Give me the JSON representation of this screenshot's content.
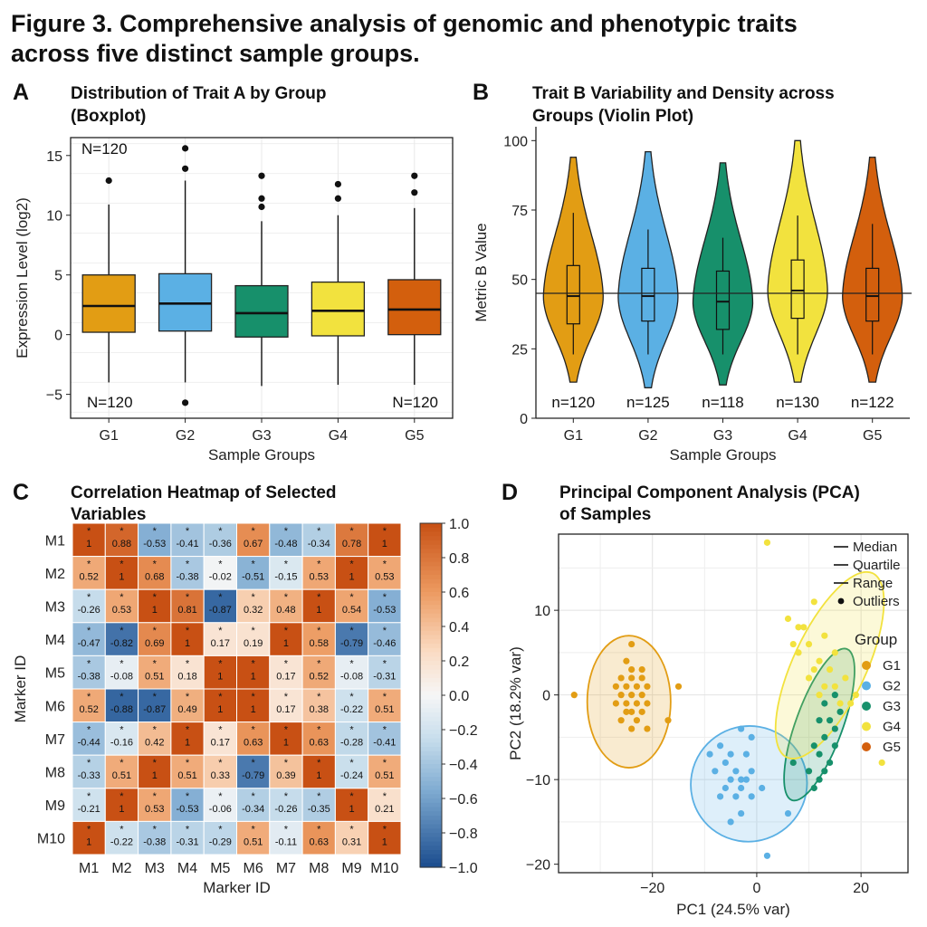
{
  "figure_title_line1": "Figure 3. Comprehensive analysis of genomic and phenotypic traits",
  "figure_title_line2": "across five distinct sample groups.",
  "chart_data": [
    {
      "panel": "A",
      "type": "boxplot",
      "title_line1": "Distribution of Trait A by Group",
      "title_line2": "(Boxplot)",
      "xlabel": "Sample Groups",
      "ylabel": "Expression Level (log2)",
      "ylim": [
        -7,
        16.5
      ],
      "yticks": [
        -5,
        0,
        5,
        10,
        15
      ],
      "ytick_labels": [
        "−5",
        "0",
        "5",
        "10",
        "15"
      ],
      "grid": true,
      "categories": [
        "G1",
        "G2",
        "G3",
        "G4",
        "G5"
      ],
      "colors": [
        "#E29D14",
        "#5BB0E4",
        "#17906B",
        "#F2E23E",
        "#D35F0D"
      ],
      "boxes": [
        {
          "group": "G1",
          "whisker_low": -4.0,
          "q1": 0.2,
          "median": 2.4,
          "q3": 5.0,
          "whisker_high": 10.9,
          "outliers": [
            12.9
          ]
        },
        {
          "group": "G2",
          "whisker_low": -4.0,
          "q1": 0.3,
          "median": 2.6,
          "q3": 5.1,
          "whisker_high": 12.9,
          "outliers": [
            13.9,
            15.6,
            -5.7
          ]
        },
        {
          "group": "G3",
          "whisker_low": -4.3,
          "q1": -0.2,
          "median": 1.8,
          "q3": 4.1,
          "whisker_high": 9.5,
          "outliers": [
            10.7,
            11.4,
            13.3
          ]
        },
        {
          "group": "G4",
          "whisker_low": -4.2,
          "q1": -0.1,
          "median": 2.0,
          "q3": 4.4,
          "whisker_high": 10.0,
          "outliers": [
            11.4,
            12.6
          ]
        },
        {
          "group": "G5",
          "whisker_low": -4.2,
          "q1": 0.0,
          "median": 2.1,
          "q3": 4.6,
          "whisker_high": 10.6,
          "outliers": [
            11.9,
            13.3
          ]
        }
      ],
      "annotations": [
        "N=120",
        "N=120",
        "N=120"
      ]
    },
    {
      "panel": "B",
      "type": "violin",
      "title_line1": "Trait B Variability and Density across",
      "title_line2": "Groups (Violin Plot)",
      "xlabel": "Sample Groups",
      "ylabel": "Metric B Value",
      "ylim": [
        0,
        105
      ],
      "yticks": [
        0,
        25,
        50,
        75,
        100
      ],
      "reference_line": 45,
      "grid": false,
      "categories": [
        "G1",
        "G2",
        "G3",
        "G4",
        "G5"
      ],
      "colors": [
        "#E29D14",
        "#5BB0E4",
        "#17906B",
        "#F2E23E",
        "#D35F0D"
      ],
      "violins": [
        {
          "group": "G1",
          "min": 13,
          "max": 94,
          "q1": 34,
          "median": 44,
          "q3": 55,
          "whisker_low": 23,
          "whisker_high": 74,
          "n_label": "n=120"
        },
        {
          "group": "G2",
          "min": 11,
          "max": 96,
          "q1": 35,
          "median": 44,
          "q3": 54,
          "whisker_low": 23,
          "whisker_high": 68,
          "n_label": "n=125"
        },
        {
          "group": "G3",
          "min": 12,
          "max": 92,
          "q1": 32,
          "median": 42,
          "q3": 53,
          "whisker_low": 23,
          "whisker_high": 65,
          "n_label": "n=118"
        },
        {
          "group": "G4",
          "min": 13,
          "max": 100,
          "q1": 36,
          "median": 46,
          "q3": 57,
          "whisker_low": 23,
          "whisker_high": 73,
          "n_label": "n=130"
        },
        {
          "group": "G5",
          "min": 13,
          "max": 94,
          "q1": 35,
          "median": 44,
          "q3": 54,
          "whisker_low": 23,
          "whisker_high": 70,
          "n_label": "n=122"
        }
      ]
    },
    {
      "panel": "C",
      "type": "heatmap",
      "title_line1": "Correlation Heatmap of Selected",
      "title_line2": "Variables",
      "xlabel": "Marker ID",
      "ylabel": "Marker ID",
      "labels": [
        "M1",
        "M2",
        "M3",
        "M4",
        "M5",
        "M6",
        "M7",
        "M8",
        "M9",
        "M10"
      ],
      "colorbar_ticks": [
        "1.0",
        "0.8",
        "0.6",
        "0.4",
        "0.2",
        "0.0",
        "−0.2",
        "−0.4",
        "−0.6",
        "−0.8",
        "−1.0"
      ],
      "colorbar_range": [
        -1,
        1
      ],
      "values": [
        [
          1,
          0.88,
          -0.53,
          -0.41,
          -0.36,
          0.67,
          -0.48,
          -0.34,
          0.78,
          1
        ],
        [
          0.52,
          1,
          0.68,
          -0.38,
          -0.02,
          -0.51,
          -0.15,
          0.53,
          1,
          0.53
        ],
        [
          -0.26,
          0.53,
          1,
          0.81,
          -0.87,
          0.32,
          0.48,
          1,
          0.54,
          -0.53
        ],
        [
          -0.47,
          -0.82,
          0.69,
          1,
          0.17,
          0.19,
          1,
          0.58,
          -0.79,
          -0.46
        ],
        [
          -0.38,
          -0.08,
          0.51,
          0.18,
          1,
          1,
          0.17,
          0.52,
          -0.08,
          -0.31
        ],
        [
          0.52,
          -0.88,
          -0.87,
          0.49,
          1,
          1,
          0.17,
          0.38,
          -0.22,
          0.51
        ],
        [
          -0.44,
          -0.16,
          0.42,
          1,
          0.17,
          0.63,
          1,
          0.63,
          -0.28,
          -0.41
        ],
        [
          -0.33,
          0.51,
          1,
          0.51,
          0.33,
          -0.79,
          0.39,
          1,
          -0.24,
          0.51
        ],
        [
          -0.21,
          1,
          0.53,
          -0.53,
          -0.06,
          -0.34,
          -0.26,
          -0.35,
          1,
          0.21
        ],
        [
          1,
          -0.22,
          -0.38,
          -0.31,
          -0.29,
          0.51,
          -0.11,
          0.63,
          0.31,
          1
        ]
      ],
      "cell_labels": [
        [
          "1",
          "0.88",
          "-0.53",
          "-0.41",
          "-0.36",
          "0.67",
          "-0.48",
          "-0.34",
          "0.78",
          "1"
        ],
        [
          "0.52",
          "1",
          "0.68",
          "-0.38",
          "-0.02",
          "-0.51",
          "-0.15",
          "0.53",
          "1",
          "0.53"
        ],
        [
          "-0.26",
          "0.53",
          "1",
          "0.81",
          "-0.87",
          "0.32",
          "0.48",
          "1",
          "0.54",
          "-0.53"
        ],
        [
          "-0.47",
          "-0.82",
          "0.69",
          "1",
          "0.17",
          "0.19",
          "1",
          "0.58",
          "-0.79",
          "-0.46"
        ],
        [
          "-0.38",
          "-0.08",
          "0.51",
          "0.18",
          "1",
          "1",
          "0.17",
          "0.52",
          "-0.08",
          "-0.31"
        ],
        [
          "0.52",
          "-0.88",
          "-0.87",
          "0.49",
          "1",
          "1",
          "0.17",
          "0.38",
          "-0.22",
          "0.51"
        ],
        [
          "-0.44",
          "-0.16",
          "0.42",
          "1",
          "0.17",
          "0.63",
          "1",
          "0.63",
          "-0.28",
          "-0.41"
        ],
        [
          "-0.33",
          "0.51",
          "1",
          "0.51",
          "0.33",
          "-0.79",
          "0.39",
          "1",
          "-0.24",
          "0.51"
        ],
        [
          "-0.21",
          "1",
          "0.53",
          "-0.53",
          "-0.06",
          "-0.34",
          "-0.26",
          "-0.35",
          "1",
          "0.21"
        ],
        [
          "1",
          "-0.22",
          "-0.38",
          "-0.31",
          "-0.29",
          "0.51",
          "-0.11",
          "0.63",
          "0.31",
          "1"
        ]
      ],
      "significance_marker": "*"
    },
    {
      "panel": "D",
      "type": "scatter",
      "title_line1": "Principal Component Analysis (PCA)",
      "title_line2": "of Samples",
      "xlabel": "PC1 (24.5% var)",
      "ylabel": "PC2 (18.2% var)",
      "xlim": [
        -38,
        29
      ],
      "ylim": [
        -21,
        19
      ],
      "xticks": [
        -20,
        0,
        20
      ],
      "xtick_labels": [
        "−20",
        "0",
        "20"
      ],
      "yticks": [
        -20,
        -10,
        0,
        10
      ],
      "ytick_labels": [
        "−20",
        "−10",
        "0",
        "10"
      ],
      "grid": true,
      "legend_position": "right",
      "legend_lines": [
        "Median",
        "Quartile",
        "Range",
        "Outliers"
      ],
      "legend_title": "Group",
      "series": [
        {
          "name": "G1",
          "color": "#E29D14",
          "ellipse": {
            "cx": -24.5,
            "cy": -0.8,
            "rx": 8.0,
            "ry": 7.8,
            "angle": 0
          },
          "points": [
            [
              -24,
              6
            ],
            [
              -25,
              4
            ],
            [
              -24,
              3
            ],
            [
              -22,
              3
            ],
            [
              -26,
              2
            ],
            [
              -24,
              2
            ],
            [
              -22,
              2
            ],
            [
              -23,
              1
            ],
            [
              -25,
              1
            ],
            [
              -27,
              1
            ],
            [
              -21,
              1
            ],
            [
              -15,
              1
            ],
            [
              -24,
              0
            ],
            [
              -22,
              0
            ],
            [
              -26,
              0
            ],
            [
              -35,
              0
            ],
            [
              -25,
              -1
            ],
            [
              -23,
              -1
            ],
            [
              -21,
              -1
            ],
            [
              -24,
              -2
            ],
            [
              -22,
              -2
            ],
            [
              -26,
              -3
            ],
            [
              -23,
              -3
            ],
            [
              -24,
              -4
            ],
            [
              -21,
              -4
            ],
            [
              -25,
              -2
            ],
            [
              -27,
              -1
            ],
            [
              -17,
              -3
            ]
          ]
        },
        {
          "name": "G2",
          "color": "#5BB0E4",
          "ellipse": {
            "cx": -1.5,
            "cy": -10.5,
            "rx": 11.2,
            "ry": 6.8,
            "angle": -35
          },
          "points": [
            [
              -3,
              -4
            ],
            [
              -7,
              -6
            ],
            [
              -9,
              -7
            ],
            [
              -1,
              -5
            ],
            [
              -5,
              -7
            ],
            [
              -2,
              -7
            ],
            [
              -6,
              -8
            ],
            [
              -4,
              -9
            ],
            [
              -8,
              -9
            ],
            [
              -1,
              -9
            ],
            [
              -3,
              -10
            ],
            [
              -5,
              -10
            ],
            [
              -2,
              -10
            ],
            [
              -6,
              -11
            ],
            [
              -4,
              -12
            ],
            [
              -1,
              -12
            ],
            [
              -3,
              -11
            ],
            [
              1,
              -11
            ],
            [
              -7,
              -12
            ],
            [
              -3,
              -14
            ],
            [
              6,
              -14
            ],
            [
              -5,
              -15
            ],
            [
              2,
              -19
            ]
          ]
        },
        {
          "name": "G3",
          "color": "#17906B",
          "ellipse": {
            "cx": 12.0,
            "cy": -3.5,
            "rx": 4.5,
            "ry": 9.5,
            "angle": 20
          },
          "points": [
            [
              15,
              0
            ],
            [
              13,
              -1
            ],
            [
              16,
              -2
            ],
            [
              12,
              -3
            ],
            [
              14,
              -3
            ],
            [
              13,
              -5
            ],
            [
              11,
              -6
            ],
            [
              15,
              -6
            ],
            [
              12,
              -7
            ],
            [
              14,
              -8
            ],
            [
              10,
              -9
            ],
            [
              13,
              -9
            ],
            [
              12,
              -10
            ],
            [
              11,
              -11
            ],
            [
              7,
              -8
            ],
            [
              15,
              -4
            ]
          ]
        },
        {
          "name": "G4",
          "color": "#F2E23E",
          "ellipse": {
            "cx": 14.0,
            "cy": 3.5,
            "rx": 7.0,
            "ry": 12.0,
            "angle": 25
          },
          "points": [
            [
              2,
              18
            ],
            [
              11,
              11
            ],
            [
              6,
              9
            ],
            [
              9,
              8
            ],
            [
              13,
              7
            ],
            [
              7,
              6
            ],
            [
              10,
              6
            ],
            [
              15,
              5
            ],
            [
              8,
              5
            ],
            [
              12,
              4
            ],
            [
              11,
              3
            ],
            [
              14,
              3
            ],
            [
              17,
              2
            ],
            [
              10,
              2
            ],
            [
              13,
              1
            ],
            [
              15,
              1
            ],
            [
              19,
              0
            ],
            [
              16,
              -1
            ],
            [
              18,
              -1
            ],
            [
              12,
              0
            ],
            [
              24,
              -8
            ],
            [
              8,
              8
            ]
          ]
        },
        {
          "name": "G5",
          "color": "#D35F0D",
          "points": []
        }
      ]
    }
  ]
}
